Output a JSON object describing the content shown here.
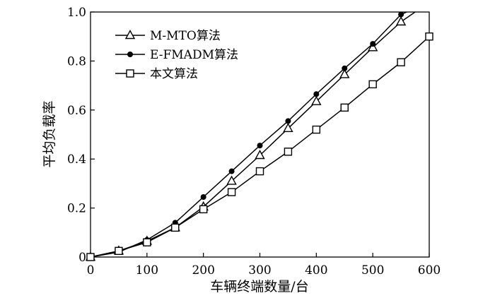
{
  "chart_data": {
    "type": "line",
    "xlabel": "车辆终端数量/台",
    "ylabel": "平均负载率",
    "xlim": [
      0,
      600
    ],
    "ylim": [
      0,
      1.0
    ],
    "xticks": [
      "0",
      "100",
      "200",
      "300",
      "400",
      "500",
      "600"
    ],
    "yticks": [
      "0",
      "0.2",
      "0.4",
      "0.6",
      "0.8",
      "1.0"
    ],
    "grid": false,
    "legend_position": "top-left",
    "series": [
      {
        "name": "M-MTO算法",
        "marker": "triangle-open",
        "x": [
          0,
          50,
          100,
          150,
          200,
          250,
          300,
          350,
          400,
          450,
          500,
          550,
          575
        ],
        "y": [
          0,
          0.025,
          0.065,
          0.12,
          0.205,
          0.31,
          0.415,
          0.525,
          0.635,
          0.745,
          0.855,
          0.96,
          1.0
        ],
        "marked": [
          true,
          true,
          true,
          true,
          true,
          true,
          true,
          true,
          true,
          true,
          true,
          true,
          false
        ]
      },
      {
        "name": "E-FMADM算法",
        "marker": "circle-filled",
        "x": [
          0,
          50,
          100,
          150,
          200,
          250,
          300,
          350,
          400,
          450,
          500,
          550,
          560
        ],
        "y": [
          0,
          0.02,
          0.07,
          0.14,
          0.245,
          0.35,
          0.455,
          0.555,
          0.665,
          0.77,
          0.87,
          0.99,
          1.0
        ],
        "marked": [
          true,
          true,
          true,
          true,
          true,
          true,
          true,
          true,
          true,
          true,
          true,
          true,
          false
        ]
      },
      {
        "name": "本文算法",
        "marker": "square-open",
        "x": [
          0,
          50,
          100,
          150,
          200,
          250,
          300,
          350,
          400,
          450,
          500,
          550,
          600
        ],
        "y": [
          0,
          0.025,
          0.06,
          0.12,
          0.195,
          0.265,
          0.35,
          0.43,
          0.52,
          0.61,
          0.705,
          0.795,
          0.9
        ],
        "marked": [
          true,
          true,
          true,
          true,
          true,
          true,
          true,
          true,
          true,
          true,
          true,
          true,
          true
        ]
      }
    ]
  }
}
